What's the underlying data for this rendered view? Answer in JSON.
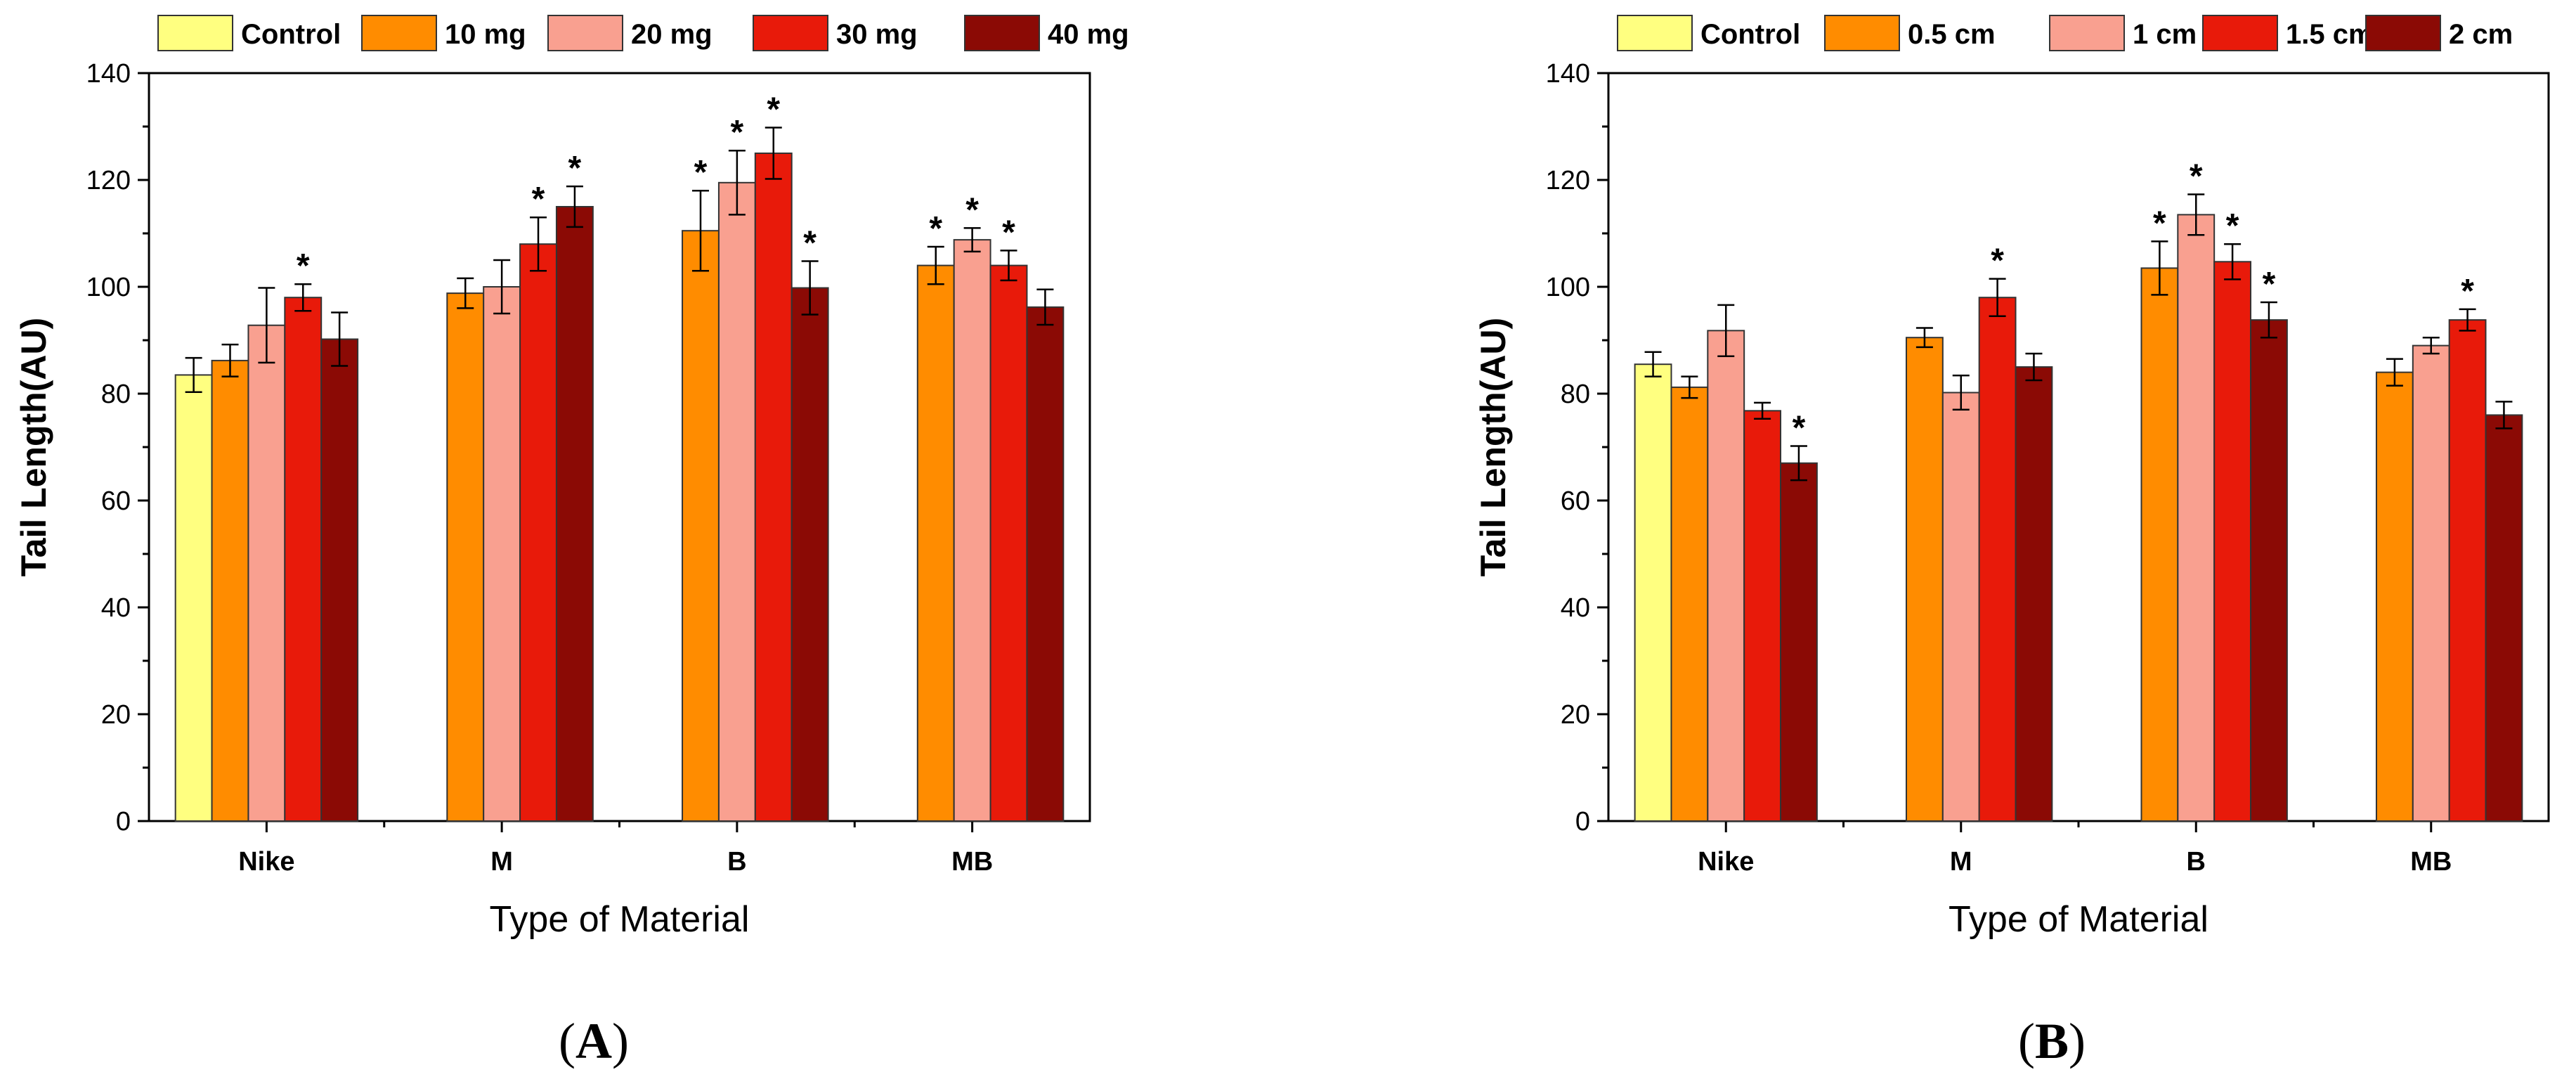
{
  "colors": [
    "#ffff80",
    "#ff8c00",
    "#f9a090",
    "#e81a0a",
    "#8b0a05"
  ],
  "chart_data": [
    {
      "type": "bar",
      "panel_label": "A",
      "xlabel": "Type of Material",
      "ylabel": "Tail Length(AU)",
      "ylim": [
        0,
        140
      ],
      "yticks": [
        0,
        20,
        40,
        60,
        80,
        100,
        120,
        140
      ],
      "categories": [
        "Nike",
        "M",
        "B",
        "MB"
      ],
      "legend_position": "top",
      "series": [
        {
          "name": "Control",
          "values": [
            83.5,
            null,
            null,
            null
          ],
          "errors": [
            3.2,
            null,
            null,
            null
          ],
          "significant": [
            false,
            false,
            false,
            false
          ]
        },
        {
          "name": "10 mg",
          "values": [
            86.2,
            98.8,
            110.5,
            104.0
          ],
          "errors": [
            3.0,
            2.8,
            7.5,
            3.5
          ],
          "significant": [
            false,
            false,
            true,
            true
          ]
        },
        {
          "name": "20 mg",
          "values": [
            92.8,
            100.0,
            119.5,
            108.8
          ],
          "errors": [
            7.0,
            5.0,
            6.0,
            2.2
          ],
          "significant": [
            false,
            false,
            true,
            true
          ]
        },
        {
          "name": "30 mg",
          "values": [
            98.0,
            108.0,
            125.0,
            104.0
          ],
          "errors": [
            2.5,
            5.0,
            4.8,
            2.8
          ],
          "significant": [
            true,
            true,
            true,
            true
          ]
        },
        {
          "name": "40 mg",
          "values": [
            90.2,
            115.0,
            99.8,
            96.2
          ],
          "errors": [
            5.0,
            3.8,
            5.0,
            3.3
          ],
          "significant": [
            false,
            true,
            true,
            false
          ]
        }
      ]
    },
    {
      "type": "bar",
      "panel_label": "B",
      "xlabel": "Type of Material",
      "ylabel": "Tail Length(AU)",
      "ylim": [
        0,
        140
      ],
      "yticks": [
        0,
        20,
        40,
        60,
        80,
        100,
        120,
        140
      ],
      "categories": [
        "Nike",
        "M",
        "B",
        "MB"
      ],
      "legend_position": "top",
      "series": [
        {
          "name": "Control",
          "values": [
            85.5,
            null,
            null,
            null
          ],
          "errors": [
            2.3,
            null,
            null,
            null
          ],
          "significant": [
            false,
            false,
            false,
            false
          ]
        },
        {
          "name": "0.5 cm",
          "values": [
            81.2,
            90.5,
            103.5,
            84.0
          ],
          "errors": [
            2.0,
            1.8,
            5.0,
            2.5
          ],
          "significant": [
            false,
            false,
            true,
            false
          ]
        },
        {
          "name": "1 cm",
          "values": [
            91.8,
            80.2,
            113.5,
            89.0
          ],
          "errors": [
            4.8,
            3.2,
            3.8,
            1.5
          ],
          "significant": [
            false,
            false,
            true,
            false
          ]
        },
        {
          "name": "1.5 cm",
          "values": [
            76.8,
            98.0,
            104.7,
            93.8
          ],
          "errors": [
            1.5,
            3.5,
            3.3,
            2.0
          ],
          "significant": [
            false,
            true,
            true,
            true
          ]
        },
        {
          "name": "2 cm",
          "values": [
            67.0,
            85.0,
            93.8,
            76.0
          ],
          "errors": [
            3.2,
            2.5,
            3.3,
            2.5
          ],
          "significant": [
            true,
            false,
            true,
            false
          ]
        }
      ]
    }
  ]
}
